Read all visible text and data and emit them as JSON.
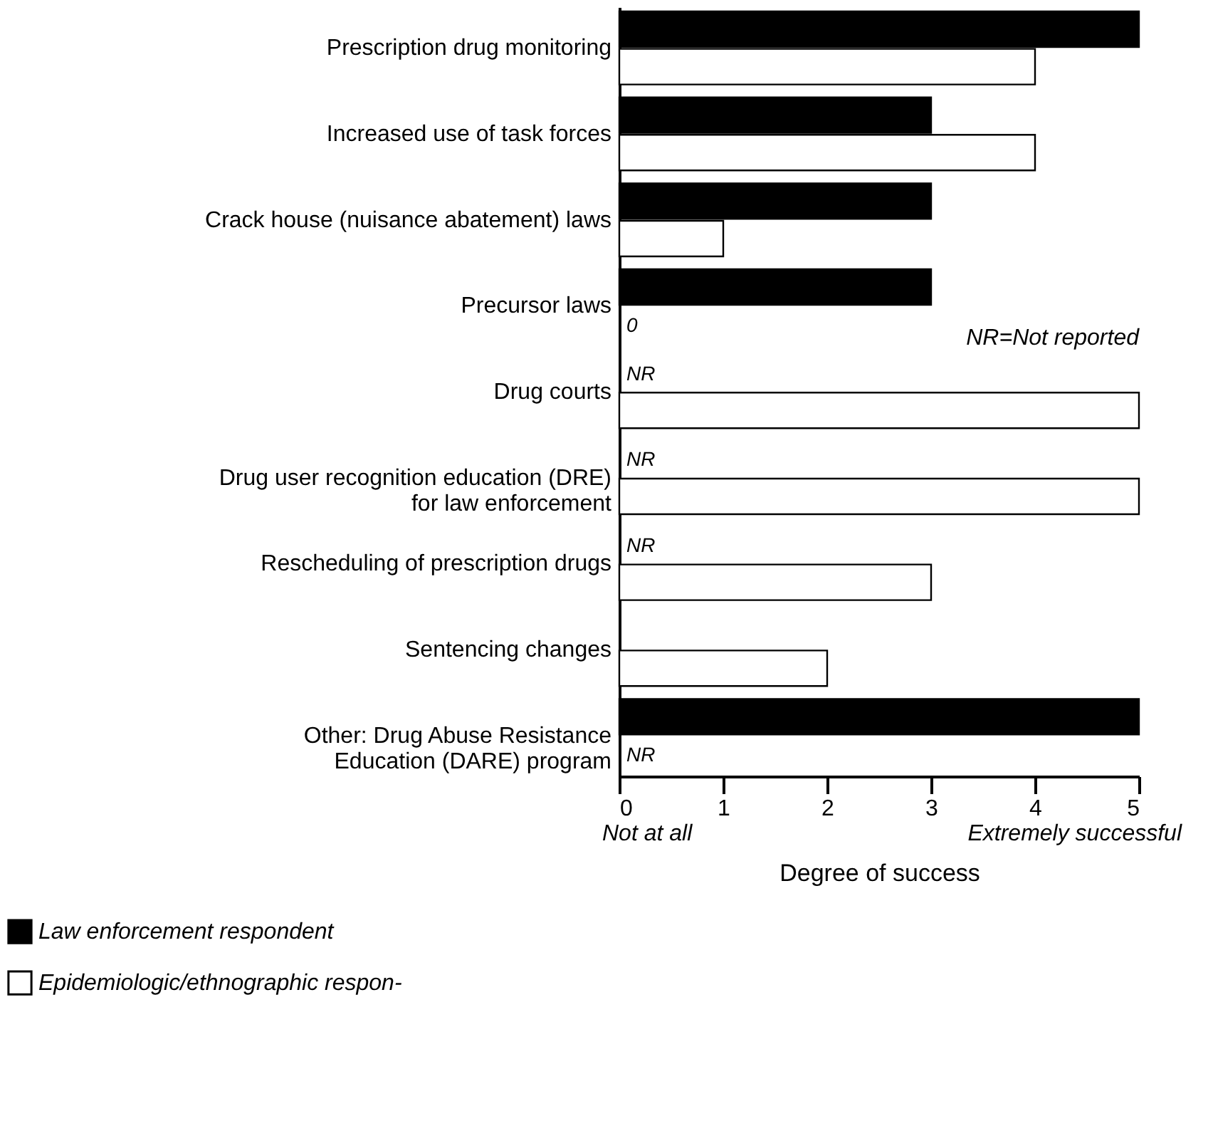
{
  "chart_data": {
    "type": "bar",
    "orientation": "horizontal",
    "categories": [
      "Prescription drug monitoring",
      "Increased use of task forces",
      "Crack house (nuisance abatement) laws",
      "Precursor laws",
      "Drug courts",
      "Drug user recognition education (DRE)\nfor law enforcement",
      "Rescheduling of prescription drugs",
      "Sentencing changes",
      "Other: Drug Abuse Resistance\nEducation (DARE) program"
    ],
    "series": [
      {
        "name": "Law enforcement respondent",
        "color": "#000000",
        "values": [
          5,
          3,
          3,
          3,
          null,
          null,
          null,
          null,
          5
        ],
        "value_labels": [
          null,
          null,
          null,
          null,
          "NR",
          "NR",
          "NR",
          null,
          null
        ]
      },
      {
        "name": "Epidemiologic/ethnographic respon-",
        "color": "#ffffff",
        "values": [
          4,
          4,
          1,
          0,
          5,
          5,
          3,
          2,
          null
        ],
        "value_labels": [
          null,
          null,
          null,
          "0",
          null,
          null,
          null,
          null,
          "NR"
        ]
      }
    ],
    "xlim": [
      0,
      5
    ],
    "xticks": [
      0,
      1,
      2,
      3,
      4,
      5
    ],
    "xlabel": "Degree of success",
    "annotations": [
      "NR=Not reported",
      "Not at all",
      "Extremely successful"
    ],
    "grid": false,
    "legend": "bottom"
  }
}
